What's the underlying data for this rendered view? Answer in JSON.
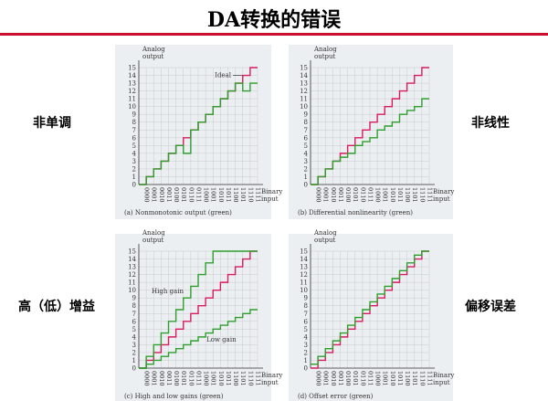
{
  "slide": {
    "title": "DA转换的错误",
    "labels": {
      "top_left": "非单调",
      "top_right": "非线性",
      "bottom_left": "高（低）增益",
      "bottom_right": "偏移误差"
    }
  },
  "colors": {
    "ideal": "#d81b60",
    "actual": "#2e9e2e",
    "rule": "#c8102e",
    "panel": "#eceff1"
  },
  "chart_data": [
    {
      "type": "line",
      "ylabel": "Analog\noutput",
      "xlabel": "Binary\ninput",
      "caption": "(a) Nonmonotonic output (green)",
      "x": [
        "0000",
        "0001",
        "0010",
        "0011",
        "0100",
        "0101",
        "0110",
        "0111",
        "1000",
        "1001",
        "1010",
        "1011",
        "1100",
        "1101",
        "1110",
        "1111"
      ],
      "ylim": [
        0,
        15
      ],
      "yticks": [
        0,
        1,
        2,
        3,
        4,
        5,
        6,
        7,
        8,
        9,
        10,
        11,
        12,
        13,
        14,
        15
      ],
      "annotation": "Ideal",
      "series": [
        {
          "values": [
            0,
            1,
            2,
            3,
            4,
            5,
            6,
            7,
            8,
            9,
            10,
            11,
            12,
            13,
            14,
            15
          ]
        },
        {
          "values": [
            0,
            1,
            2,
            3,
            4,
            5,
            4,
            7,
            8,
            9,
            10,
            11,
            12,
            13,
            12,
            13
          ]
        }
      ]
    },
    {
      "type": "line",
      "ylabel": "Analog\noutput",
      "xlabel": "Binary\ninput",
      "caption": "(b) Differential nonlinearity (green)",
      "x": [
        "0000",
        "0001",
        "0010",
        "0011",
        "0100",
        "0101",
        "0110",
        "0111",
        "1000",
        "1001",
        "1010",
        "1011",
        "1100",
        "1101",
        "1110",
        "1111"
      ],
      "ylim": [
        0,
        15
      ],
      "yticks": [
        0,
        1,
        2,
        3,
        4,
        5,
        6,
        7,
        8,
        9,
        10,
        11,
        12,
        13,
        14,
        15
      ],
      "series": [
        {
          "values": [
            0,
            1,
            2,
            3,
            4,
            5,
            6,
            7,
            8,
            9,
            10,
            11,
            12,
            13,
            14,
            15
          ]
        },
        {
          "values": [
            0,
            1,
            2,
            3,
            3.5,
            4,
            5,
            5.5,
            6,
            7,
            7.5,
            8,
            9,
            9.5,
            10,
            11
          ]
        }
      ]
    },
    {
      "type": "line",
      "ylabel": "Analog\noutput",
      "xlabel": "Binary\ninput",
      "caption": "(c) High and low gains (green)",
      "x": [
        "0000",
        "0001",
        "0010",
        "0011",
        "0100",
        "0101",
        "0110",
        "0111",
        "1000",
        "1001",
        "1010",
        "1011",
        "1100",
        "1101",
        "1110",
        "1111"
      ],
      "ylim": [
        0,
        15
      ],
      "yticks": [
        0,
        1,
        2,
        3,
        4,
        5,
        6,
        7,
        8,
        9,
        10,
        11,
        12,
        13,
        14,
        15
      ],
      "annotations": [
        "High gain",
        "Low gain"
      ],
      "series": [
        {
          "values": [
            0,
            1,
            2,
            3,
            4,
            5,
            6,
            7,
            8,
            9,
            10,
            11,
            12,
            13,
            14,
            15
          ]
        },
        {
          "name": "High gain",
          "values": [
            0,
            1.5,
            3,
            4.5,
            6,
            7.5,
            9,
            10.5,
            12,
            13.5,
            15,
            15,
            15,
            15,
            15,
            15
          ]
        },
        {
          "name": "Low gain",
          "values": [
            0,
            0.5,
            1,
            1.5,
            2,
            2.5,
            3,
            3.5,
            4,
            4.5,
            5,
            5.5,
            6,
            6.5,
            7,
            7.5
          ]
        }
      ]
    },
    {
      "type": "line",
      "ylabel": "Analog\noutput",
      "xlabel": "Binary\ninput",
      "caption": "(d) Offset error (green)",
      "x": [
        "0000",
        "0001",
        "0010",
        "0011",
        "0100",
        "0101",
        "0110",
        "0111",
        "1000",
        "1001",
        "1010",
        "1011",
        "1100",
        "1101",
        "1110",
        "1111"
      ],
      "ylim": [
        0,
        15
      ],
      "yticks": [
        0,
        1,
        2,
        3,
        4,
        5,
        6,
        7,
        8,
        9,
        10,
        11,
        12,
        13,
        14,
        15
      ],
      "series": [
        {
          "values": [
            0,
            1,
            2,
            3,
            4,
            5,
            6,
            7,
            8,
            9,
            10,
            11,
            12,
            13,
            14,
            15
          ]
        },
        {
          "values": [
            0.5,
            1.5,
            2.5,
            3.5,
            4.5,
            5.5,
            6.5,
            7.5,
            8.5,
            9.5,
            10.5,
            11.5,
            12.5,
            13.5,
            14.5,
            15
          ]
        }
      ]
    }
  ]
}
